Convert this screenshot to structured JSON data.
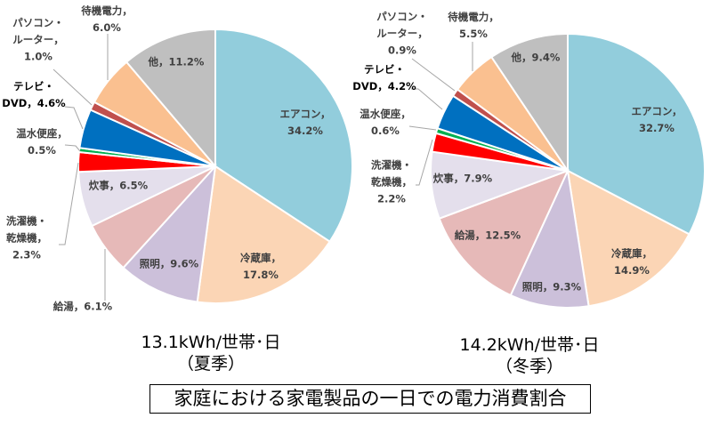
{
  "chart_data": [
    {
      "type": "pie",
      "caption_value": "13.1kWh/世帯･日",
      "caption_season": "（夏季）",
      "slices": [
        {
          "label": "エアコン",
          "value": 34.2,
          "color": "#92CDDC",
          "data_label": "エアコン，\n34.2%"
        },
        {
          "label": "冷蔵庫",
          "value": 17.8,
          "color": "#FBD5B5",
          "data_label": "冷蔵庫，\n17.8%"
        },
        {
          "label": "照明",
          "value": 9.6,
          "color": "#CCC0DA",
          "data_label": "照明，9.6%"
        },
        {
          "label": "給湯",
          "value": 6.1,
          "color": "#E6B9B8",
          "data_label": "給湯，6.1%"
        },
        {
          "label": "炊事",
          "value": 6.5,
          "color": "#E4DFEC",
          "data_label": "炊事，6.5%"
        },
        {
          "label": "洗濯機・乾燥機",
          "value": 2.3,
          "color": "#FF0000",
          "data_label": "洗濯機・\n乾燥機，\n2.3%"
        },
        {
          "label": "温水便座",
          "value": 0.5,
          "color": "#00B050",
          "data_label": "温水便座，\n0.5%"
        },
        {
          "label": "テレビ・DVD",
          "value": 4.6,
          "color": "#0070C0",
          "data_label": "テレビ・\nDVD，4.6%"
        },
        {
          "label": "パソコン・ルーター",
          "value": 1.0,
          "color": "#C0504D",
          "data_label": "パソコン・\nルーター，\n1.0%"
        },
        {
          "label": "待機電力",
          "value": 6.0,
          "color": "#FAC090",
          "data_label": "待機電力，\n6.0%"
        },
        {
          "label": "他",
          "value": 11.2,
          "color": "#BFBFBF",
          "data_label": "他，11.2%"
        }
      ]
    },
    {
      "type": "pie",
      "caption_value": "14.2kWh/世帯･日",
      "caption_season": "（冬季）",
      "slices": [
        {
          "label": "エアコン",
          "value": 32.7,
          "color": "#92CDDC",
          "data_label": "エアコン，\n32.7%"
        },
        {
          "label": "冷蔵庫",
          "value": 14.9,
          "color": "#FBD5B5",
          "data_label": "冷蔵庫，\n14.9%"
        },
        {
          "label": "照明",
          "value": 9.3,
          "color": "#CCC0DA",
          "data_label": "照明，9.3%"
        },
        {
          "label": "給湯",
          "value": 12.5,
          "color": "#E6B9B8",
          "data_label": "給湯，12.5%"
        },
        {
          "label": "炊事",
          "value": 7.9,
          "color": "#E4DFEC",
          "data_label": "炊事，7.9%"
        },
        {
          "label": "洗濯機・乾燥機",
          "value": 2.2,
          "color": "#FF0000",
          "data_label": "洗濯機・\n乾燥機，\n2.2%"
        },
        {
          "label": "温水便座",
          "value": 0.6,
          "color": "#00B050",
          "data_label": "温水便座，\n0.6%"
        },
        {
          "label": "テレビ・DVD",
          "value": 4.2,
          "color": "#0070C0",
          "data_label": "テレビ・\nDVD，4.2%"
        },
        {
          "label": "パソコン・ルーター",
          "value": 0.9,
          "color": "#C0504D",
          "data_label": "パソコン・\nルーター，\n0.9%"
        },
        {
          "label": "待機電力",
          "value": 5.5,
          "color": "#FAC090",
          "data_label": "待機電力，\n5.5%"
        },
        {
          "label": "他",
          "value": 9.4,
          "color": "#BFBFBF",
          "data_label": "他，9.4%"
        }
      ]
    }
  ],
  "title": "家庭における家電製品の一日での電力消費割合"
}
